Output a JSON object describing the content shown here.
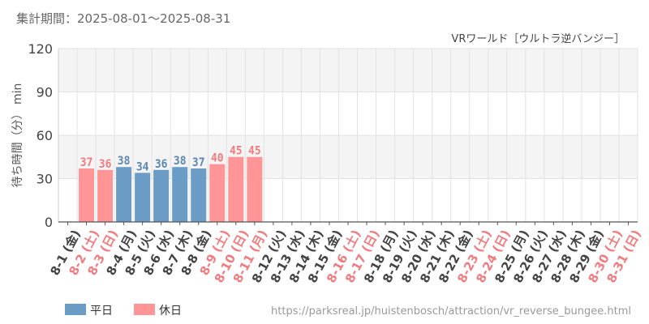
{
  "header": {
    "period": "集計期間：2025-08-01～2025-08-31",
    "attraction": "VRワールド［ウルトラ逆バンジー］"
  },
  "legend": {
    "weekday": "平日",
    "holiday": "休日"
  },
  "footer": {
    "url": "https://parksreal.jp/huistenbosch/attraction/vr_reverse_bungee.html"
  },
  "colors": {
    "weekday": "#6a9cc5",
    "holiday": "#ff9597",
    "weekday_text": "#5b87b0",
    "holiday_text": "#f07c80",
    "axis_text": "#444444",
    "band": "#f4f4f4",
    "grid": "#e2e2e2"
  },
  "chart_data": {
    "type": "bar",
    "ylabel": "待ち時間（分） min",
    "ylim": [
      0,
      120
    ],
    "yticks": [
      0,
      30,
      60,
      90,
      120
    ],
    "categories": [
      "8-1 (金)",
      "8-2 (土)",
      "8-3 (日)",
      "8-4 (月)",
      "8-5 (火)",
      "8-6 (水)",
      "8-7 (木)",
      "8-8 (金)",
      "8-9 (土)",
      "8-10 (日)",
      "8-11 (月)",
      "8-12 (火)",
      "8-13 (水)",
      "8-14 (木)",
      "8-15 (金)",
      "8-16 (土)",
      "8-17 (日)",
      "8-18 (月)",
      "8-19 (火)",
      "8-20 (水)",
      "8-21 (木)",
      "8-22 (金)",
      "8-23 (土)",
      "8-24 (日)",
      "8-25 (月)",
      "8-26 (火)",
      "8-27 (水)",
      "8-28 (木)",
      "8-29 (金)",
      "8-30 (土)",
      "8-31 (日)"
    ],
    "day_type": [
      "weekday",
      "holiday",
      "holiday",
      "weekday",
      "weekday",
      "weekday",
      "weekday",
      "weekday",
      "holiday",
      "holiday",
      "holiday",
      "weekday",
      "weekday",
      "weekday",
      "weekday",
      "holiday",
      "holiday",
      "weekday",
      "weekday",
      "weekday",
      "weekday",
      "weekday",
      "holiday",
      "holiday",
      "weekday",
      "weekday",
      "weekday",
      "weekday",
      "weekday",
      "holiday",
      "holiday"
    ],
    "values": [
      null,
      37,
      36,
      38,
      34,
      36,
      38,
      37,
      40,
      45,
      45,
      null,
      null,
      null,
      null,
      null,
      null,
      null,
      null,
      null,
      null,
      null,
      null,
      null,
      null,
      null,
      null,
      null,
      null,
      null,
      null
    ],
    "grid": true,
    "legend_position": "bottom-left"
  }
}
